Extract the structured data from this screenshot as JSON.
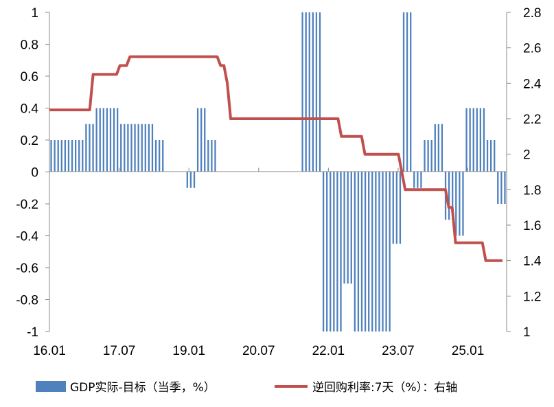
{
  "chart_data": {
    "type": "bar",
    "x_ticks": [
      "16.01",
      "17.07",
      "19.01",
      "20.07",
      "22.01",
      "23.07",
      "25.01"
    ],
    "y_left": {
      "ylim": [
        -1,
        1
      ],
      "ticks": [
        "1",
        "0.8",
        "0.6",
        "0.4",
        "0.2",
        "0",
        "-0.2",
        "-0.4",
        "-0.6",
        "-0.8",
        "-1"
      ]
    },
    "y_right": {
      "ylim": [
        1,
        2.8
      ],
      "ticks": [
        "2.8",
        "2.6",
        "2.4",
        "2.2",
        "2",
        "1.8",
        "1.6",
        "1.4",
        "1.2",
        "1"
      ]
    },
    "legend": {
      "bar_label": "GDP实际-目标（当季，%）",
      "line_label": "逆回购利率:7天（%）：右轴"
    },
    "colors": {
      "bar": "#4f81bd",
      "line": "#c0504d"
    },
    "series": [
      {
        "name": "GDP实际-目标（当季，%）",
        "type": "bar",
        "axis": "left",
        "values": [
          0.2,
          0.2,
          0.2,
          0.2,
          0.2,
          0.2,
          0.2,
          0.2,
          0.2,
          0.2,
          0.3,
          0.3,
          0.3,
          0.4,
          0.4,
          0.4,
          0.4,
          0.4,
          0.4,
          0.4,
          0.3,
          0.3,
          0.3,
          0.3,
          0.3,
          0.3,
          0.3,
          0.3,
          0.3,
          0.3,
          0.2,
          0.2,
          0.2,
          0,
          0,
          0,
          0,
          0,
          0,
          -0.1,
          -0.1,
          -0.1,
          0.4,
          0.4,
          0.4,
          0.2,
          0.2,
          0.2,
          0,
          0,
          0,
          0,
          0,
          0,
          0,
          0,
          0,
          0,
          0,
          0,
          0,
          0,
          0,
          0,
          0,
          0,
          0,
          0,
          0,
          0,
          0,
          0,
          1,
          1,
          1,
          1,
          1,
          1,
          -1,
          -1,
          -1,
          -1,
          -1,
          -1,
          -0.7,
          -0.7,
          -0.7,
          -1,
          -1,
          -1,
          -1,
          -1,
          -1,
          -1,
          -1,
          -1,
          -1,
          -1,
          -0.45,
          -0.45,
          -0.45,
          1,
          1,
          1,
          -0.1,
          -0.1,
          -0.1,
          0.2,
          0.2,
          0.2,
          0.3,
          0.3,
          0.3,
          -0.3,
          -0.3,
          -0.3,
          -0.4,
          -0.4,
          -0.4,
          0.4,
          0.4,
          0.4,
          0.4,
          0.4,
          0.4,
          0.2,
          0.2,
          0.2,
          -0.2,
          -0.2,
          -0.2
        ]
      },
      {
        "name": "逆回购利率:7天（%）：右轴",
        "type": "line",
        "axis": "right",
        "values": [
          2.25,
          2.25,
          2.25,
          2.25,
          2.25,
          2.25,
          2.25,
          2.25,
          2.25,
          2.25,
          2.25,
          2.25,
          2.25,
          2.45,
          2.45,
          2.45,
          2.45,
          2.45,
          2.45,
          2.45,
          2.45,
          2.5,
          2.5,
          2.5,
          2.55,
          2.55,
          2.55,
          2.55,
          2.55,
          2.55,
          2.55,
          2.55,
          2.55,
          2.55,
          2.55,
          2.55,
          2.55,
          2.55,
          2.55,
          2.55,
          2.55,
          2.55,
          2.55,
          2.55,
          2.55,
          2.55,
          2.55,
          2.55,
          2.55,
          2.55,
          2.55,
          2.5,
          2.5,
          2.4,
          2.2,
          2.2,
          2.2,
          2.2,
          2.2,
          2.2,
          2.2,
          2.2,
          2.2,
          2.2,
          2.2,
          2.2,
          2.2,
          2.2,
          2.2,
          2.2,
          2.2,
          2.2,
          2.2,
          2.2,
          2.2,
          2.2,
          2.2,
          2.2,
          2.2,
          2.2,
          2.2,
          2.2,
          2.2,
          2.2,
          2.2,
          2.2,
          2.2,
          2.1,
          2.1,
          2.1,
          2.1,
          2.1,
          2.1,
          2.1,
          2.0,
          2.0,
          2.0,
          2.0,
          2.0,
          2.0,
          2.0,
          2.0,
          2.0,
          2.0,
          2.0,
          1.9,
          1.8,
          1.8,
          1.8,
          1.8,
          1.8,
          1.8,
          1.8,
          1.8,
          1.8,
          1.8,
          1.8,
          1.8,
          1.8,
          1.7,
          1.7,
          1.5,
          1.5,
          1.5,
          1.5,
          1.5,
          1.5,
          1.5,
          1.5,
          1.5,
          1.4,
          1.4,
          1.4,
          1.4,
          1.4,
          1.4
        ]
      }
    ],
    "grid": false
  }
}
